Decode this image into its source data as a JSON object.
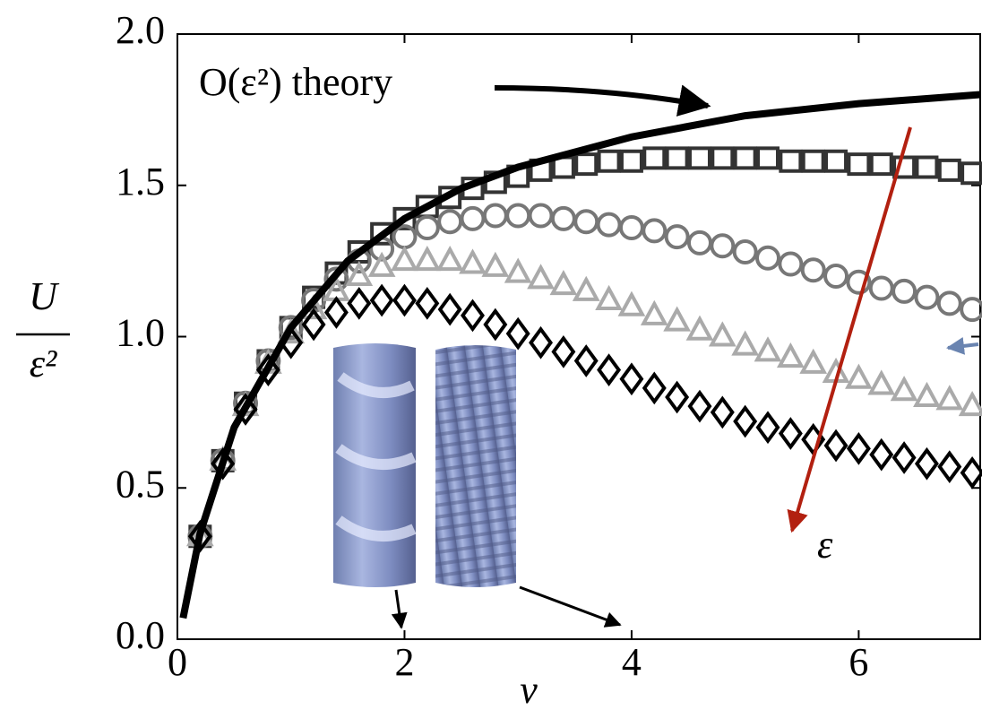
{
  "chart_data": {
    "type": "scatter",
    "xlabel": "ν",
    "ylabel": {
      "numerator": "U",
      "denominator": "ε²"
    },
    "xlim": [
      0,
      7.07
    ],
    "ylim": [
      0,
      2.0
    ],
    "xticks": [
      0,
      2,
      4,
      6
    ],
    "yticks": [
      {
        "value": 0,
        "label": "0.0"
      },
      {
        "value": 0.5,
        "label": "0.5"
      },
      {
        "value": 1.0,
        "label": "1.0"
      },
      {
        "value": 1.5,
        "label": "1.5"
      },
      {
        "value": 2.0,
        "label": "2.0"
      }
    ],
    "x": [
      0.2,
      0.4,
      0.6,
      0.8,
      1.0,
      1.2,
      1.4,
      1.6,
      1.8,
      2.0,
      2.2,
      2.4,
      2.6,
      2.8,
      3.0,
      3.2,
      3.4,
      3.6,
      3.8,
      4.0,
      4.2,
      4.4,
      4.6,
      4.8,
      5.0,
      5.2,
      5.4,
      5.6,
      5.8,
      6.0,
      6.2,
      6.4,
      6.6,
      6.8,
      7.0
    ],
    "series": [
      {
        "marker": "square",
        "color": "#333333",
        "values": [
          0.34,
          0.59,
          0.78,
          0.92,
          1.03,
          1.13,
          1.21,
          1.28,
          1.34,
          1.39,
          1.43,
          1.46,
          1.49,
          1.51,
          1.53,
          1.55,
          1.56,
          1.57,
          1.58,
          1.58,
          1.59,
          1.59,
          1.59,
          1.59,
          1.59,
          1.59,
          1.58,
          1.58,
          1.58,
          1.57,
          1.57,
          1.56,
          1.56,
          1.55,
          1.54
        ]
      },
      {
        "marker": "circle",
        "color": "#777777",
        "values": [
          0.34,
          0.59,
          0.78,
          0.92,
          1.03,
          1.12,
          1.19,
          1.25,
          1.29,
          1.33,
          1.36,
          1.38,
          1.39,
          1.4,
          1.4,
          1.4,
          1.39,
          1.38,
          1.37,
          1.36,
          1.35,
          1.33,
          1.31,
          1.3,
          1.28,
          1.26,
          1.24,
          1.22,
          1.2,
          1.18,
          1.16,
          1.15,
          1.13,
          1.11,
          1.09
        ]
      },
      {
        "marker": "triangle",
        "color": "#aaaaaa",
        "values": [
          0.34,
          0.59,
          0.77,
          0.91,
          1.01,
          1.09,
          1.15,
          1.2,
          1.23,
          1.25,
          1.25,
          1.25,
          1.24,
          1.23,
          1.21,
          1.19,
          1.17,
          1.15,
          1.12,
          1.1,
          1.07,
          1.05,
          1.02,
          1.0,
          0.97,
          0.95,
          0.93,
          0.91,
          0.88,
          0.86,
          0.84,
          0.82,
          0.8,
          0.79,
          0.77
        ]
      },
      {
        "marker": "diamond",
        "color": "#000000",
        "values": [
          0.34,
          0.58,
          0.76,
          0.89,
          0.98,
          1.04,
          1.08,
          1.11,
          1.12,
          1.12,
          1.11,
          1.09,
          1.07,
          1.04,
          1.01,
          0.98,
          0.95,
          0.92,
          0.89,
          0.86,
          0.83,
          0.8,
          0.77,
          0.75,
          0.72,
          0.7,
          0.68,
          0.66,
          0.64,
          0.63,
          0.61,
          0.6,
          0.58,
          0.57,
          0.55
        ]
      }
    ],
    "curve": {
      "color": "#000000",
      "x": [
        0.05,
        0.2,
        0.5,
        1.0,
        1.5,
        2.0,
        2.5,
        3.0,
        4.0,
        5.0,
        6.0,
        7.07
      ],
      "values": [
        0.07,
        0.35,
        0.7,
        1.03,
        1.25,
        1.39,
        1.49,
        1.56,
        1.66,
        1.73,
        1.77,
        1.8
      ]
    },
    "annotations": {
      "theory": "O(ε²) theory",
      "epsilon": "ε"
    }
  }
}
